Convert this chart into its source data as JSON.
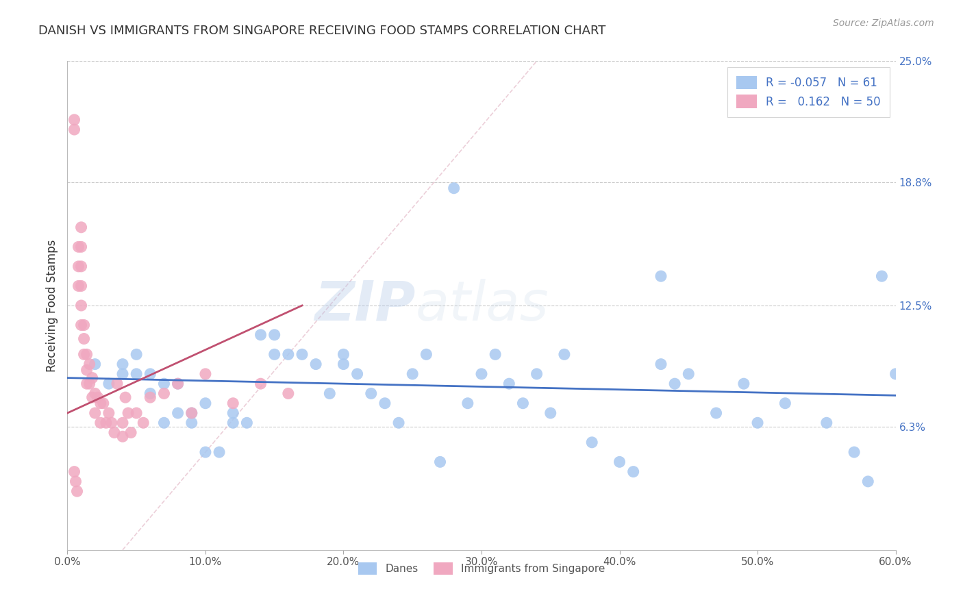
{
  "title": "DANISH VS IMMIGRANTS FROM SINGAPORE RECEIVING FOOD STAMPS CORRELATION CHART",
  "source": "Source: ZipAtlas.com",
  "ylabel": "Receiving Food Stamps",
  "xlim": [
    0,
    0.6
  ],
  "ylim": [
    0,
    0.25
  ],
  "xtick_labels": [
    "0.0%",
    "10.0%",
    "20.0%",
    "30.0%",
    "40.0%",
    "50.0%",
    "60.0%"
  ],
  "xtick_vals": [
    0.0,
    0.1,
    0.2,
    0.3,
    0.4,
    0.5,
    0.6
  ],
  "ytick_right_labels": [
    "6.3%",
    "12.5%",
    "18.8%",
    "25.0%"
  ],
  "ytick_right_vals": [
    0.063,
    0.125,
    0.188,
    0.25
  ],
  "legend_r": [
    -0.057,
    0.162
  ],
  "legend_n": [
    61,
    50
  ],
  "danes_color": "#a8c8f0",
  "singapore_color": "#f0a8c0",
  "danes_line_color": "#4472c4",
  "singapore_line_color": "#c05070",
  "watermark": "ZIPatlas",
  "danes_x": [
    0.02,
    0.03,
    0.04,
    0.04,
    0.05,
    0.05,
    0.06,
    0.06,
    0.07,
    0.07,
    0.08,
    0.08,
    0.09,
    0.09,
    0.1,
    0.1,
    0.11,
    0.12,
    0.12,
    0.13,
    0.14,
    0.15,
    0.15,
    0.16,
    0.17,
    0.18,
    0.19,
    0.2,
    0.2,
    0.21,
    0.22,
    0.23,
    0.24,
    0.25,
    0.27,
    0.28,
    0.29,
    0.3,
    0.31,
    0.32,
    0.34,
    0.35,
    0.36,
    0.38,
    0.4,
    0.41,
    0.43,
    0.43,
    0.45,
    0.47,
    0.49,
    0.5,
    0.52,
    0.55,
    0.57,
    0.58,
    0.59,
    0.6,
    0.26,
    0.44,
    0.33
  ],
  "danes_y": [
    0.095,
    0.085,
    0.09,
    0.095,
    0.09,
    0.1,
    0.08,
    0.09,
    0.085,
    0.065,
    0.07,
    0.085,
    0.065,
    0.07,
    0.075,
    0.05,
    0.05,
    0.065,
    0.07,
    0.065,
    0.11,
    0.1,
    0.11,
    0.1,
    0.1,
    0.095,
    0.08,
    0.095,
    0.1,
    0.09,
    0.08,
    0.075,
    0.065,
    0.09,
    0.045,
    0.185,
    0.075,
    0.09,
    0.1,
    0.085,
    0.09,
    0.07,
    0.1,
    0.055,
    0.045,
    0.04,
    0.14,
    0.095,
    0.09,
    0.07,
    0.085,
    0.065,
    0.075,
    0.065,
    0.05,
    0.035,
    0.14,
    0.09,
    0.1,
    0.085,
    0.075
  ],
  "singapore_x": [
    0.005,
    0.005,
    0.008,
    0.008,
    0.008,
    0.01,
    0.01,
    0.01,
    0.01,
    0.01,
    0.01,
    0.012,
    0.012,
    0.012,
    0.014,
    0.014,
    0.014,
    0.016,
    0.016,
    0.018,
    0.018,
    0.02,
    0.02,
    0.022,
    0.024,
    0.024,
    0.026,
    0.028,
    0.03,
    0.032,
    0.034,
    0.036,
    0.04,
    0.04,
    0.042,
    0.044,
    0.046,
    0.05,
    0.055,
    0.06,
    0.07,
    0.08,
    0.09,
    0.1,
    0.12,
    0.14,
    0.16,
    0.005,
    0.006,
    0.007
  ],
  "singapore_y": [
    0.22,
    0.215,
    0.155,
    0.145,
    0.135,
    0.165,
    0.155,
    0.145,
    0.135,
    0.125,
    0.115,
    0.115,
    0.108,
    0.1,
    0.1,
    0.092,
    0.085,
    0.095,
    0.085,
    0.088,
    0.078,
    0.08,
    0.07,
    0.078,
    0.075,
    0.065,
    0.075,
    0.065,
    0.07,
    0.065,
    0.06,
    0.085,
    0.065,
    0.058,
    0.078,
    0.07,
    0.06,
    0.07,
    0.065,
    0.078,
    0.08,
    0.085,
    0.07,
    0.09,
    0.075,
    0.085,
    0.08,
    0.04,
    0.035,
    0.03
  ]
}
